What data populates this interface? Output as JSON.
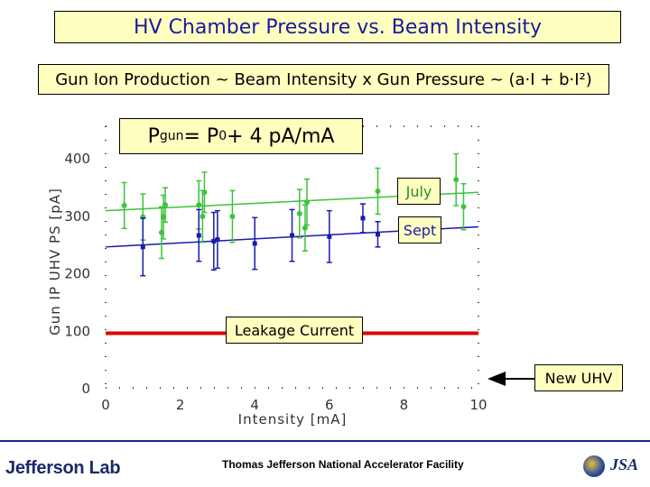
{
  "header": {
    "title": "HV Chamber Pressure vs. Beam Intensity",
    "subtitle": "Gun Ion Production ~ Beam Intensity x Gun Pressure ~ (a·I + b·I²)",
    "formula_main": "P",
    "formula_sub": "gun",
    "formula_rest": " = P",
    "formula_sub0": "0",
    "formula_tail": " + 4 pA/mA"
  },
  "annotations": {
    "july": "July",
    "sept": "Sept",
    "leakage": "Leakage Current",
    "new_uhv": "New UHV"
  },
  "footer": {
    "logo": "Jefferson Lab",
    "facility": "Thomas Jefferson National Accelerator Facility",
    "jsa": "JSA"
  },
  "colors": {
    "july": "#3dc23d",
    "sept": "#1a1ab0",
    "leakage": "#e00000",
    "title": "#1a1aa0",
    "box_bg": "#ffffc0"
  },
  "chart_data": {
    "type": "scatter",
    "xlabel": "Intensity [mA]",
    "ylabel": "Gun IP UHV PS [pA]",
    "xlim": [
      0,
      10
    ],
    "ylim": [
      0,
      450
    ],
    "xticks": [
      0,
      2,
      4,
      6,
      8,
      10
    ],
    "yticks": [
      0,
      100,
      200,
      300,
      400
    ],
    "grid": false,
    "series": [
      {
        "name": "July",
        "color": "#3dc23d",
        "points": [
          {
            "x": 0.5,
            "y": 317,
            "err": 40
          },
          {
            "x": 1.0,
            "y": 297,
            "err": 40
          },
          {
            "x": 1.5,
            "y": 270,
            "err": 45
          },
          {
            "x": 1.55,
            "y": 297,
            "err": 38
          },
          {
            "x": 1.6,
            "y": 318,
            "err": 30
          },
          {
            "x": 2.5,
            "y": 318,
            "err": 42
          },
          {
            "x": 2.6,
            "y": 298,
            "err": 45
          },
          {
            "x": 2.65,
            "y": 340,
            "err": 35
          },
          {
            "x": 3.4,
            "y": 298,
            "err": 45
          },
          {
            "x": 5.2,
            "y": 303,
            "err": 42
          },
          {
            "x": 5.4,
            "y": 323,
            "err": 40
          },
          {
            "x": 5.35,
            "y": 278,
            "err": 40
          },
          {
            "x": 7.3,
            "y": 342,
            "err": 40
          },
          {
            "x": 9.4,
            "y": 362,
            "err": 45
          },
          {
            "x": 9.6,
            "y": 315,
            "err": 40
          }
        ],
        "fit": {
          "y_at_0": 308,
          "y_at_10": 340
        }
      },
      {
        "name": "Sept",
        "color": "#1a1ab0",
        "points": [
          {
            "x": 1.0,
            "y": 245,
            "err": 50
          },
          {
            "x": 2.5,
            "y": 265,
            "err": 45
          },
          {
            "x": 2.9,
            "y": 255,
            "err": 50
          },
          {
            "x": 3.0,
            "y": 258,
            "err": 50
          },
          {
            "x": 4.0,
            "y": 251,
            "err": 45
          },
          {
            "x": 5.0,
            "y": 265,
            "err": 45
          },
          {
            "x": 6.0,
            "y": 263,
            "err": 45
          },
          {
            "x": 6.9,
            "y": 295,
            "err": 25
          },
          {
            "x": 7.3,
            "y": 267,
            "err": 22
          }
        ],
        "fit": {
          "y_at_0": 245,
          "y_at_10": 280
        }
      }
    ],
    "reference_lines": [
      {
        "name": "Leakage Current",
        "y": 95,
        "color": "#e00000"
      },
      {
        "name": "New UHV",
        "y": 0
      }
    ]
  }
}
